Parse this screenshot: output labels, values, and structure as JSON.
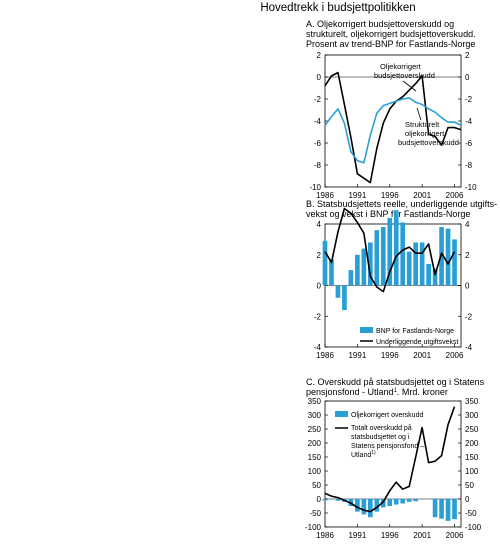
{
  "figure": {
    "title": "Hovedtrekk i budsjettpolitikken"
  },
  "chart_data": [
    {
      "panel": "A",
      "type": "line",
      "title": "A. Oljekorrigert budsjettoverskudd og strukturelt, oljekorrigert budsjettoverskudd. Prosent av trend-BNP for Fastlands-Norge",
      "title_lines": [
        "A. Oljekorrigert budsjettoverskudd og",
        "strukturelt, oljekorrigert budsjettoverskudd.",
        "Prosent av trend-BNP for Fastlands-Norge"
      ],
      "x": [
        1986,
        1987,
        1988,
        1989,
        1990,
        1991,
        1992,
        1993,
        1994,
        1995,
        1996,
        1997,
        1998,
        1999,
        2000,
        2001,
        2002,
        2003,
        2004,
        2005,
        2006,
        2007
      ],
      "x_ticks": [
        1986,
        1991,
        1996,
        2001,
        2006
      ],
      "ylim": [
        -10,
        2
      ],
      "y_ticks": [
        -10,
        -8,
        -6,
        -4,
        -2,
        0,
        2
      ],
      "grid": false,
      "series": [
        {
          "name": "Oljekorrigert budsjettoverskudd",
          "color": "#000000",
          "values": [
            -0.8,
            0.1,
            0.4,
            -2.5,
            -5.5,
            -8.8,
            -9.2,
            -9.6,
            -6.5,
            -4.2,
            -2.9,
            -2.2,
            -1.8,
            -1.2,
            -0.6,
            0.1,
            -5.2,
            -5.4,
            -6.2,
            -4.6,
            -4.6,
            -4.8
          ]
        },
        {
          "name": "Strukturelt oljekorrigert budsjettoverskudd",
          "color": "#2a9fd6",
          "values": [
            -4.4,
            -3.6,
            -2.9,
            -4.2,
            -6.8,
            -7.6,
            -7.8,
            -5.3,
            -3.3,
            -2.6,
            -2.4,
            -2.2,
            -2.0,
            -1.9,
            -2.3,
            -2.5,
            -2.9,
            -3.2,
            -3.7,
            -4.1,
            -4.1,
            -4.4
          ]
        }
      ],
      "annotations": [
        {
          "lines": [
            "Oljekorrigert",
            "budsjettoverskudd"
          ]
        },
        {
          "lines": [
            "Strukturelt",
            "oljekorrigert",
            "budsjettoverskudd"
          ]
        }
      ]
    },
    {
      "panel": "B",
      "type": "bar+line",
      "title": "B. Statsbudsjettets reelle, underliggende utgiftsvekst og vekst i BNP for Fastlands-Norge",
      "title_lines": [
        "B. Statsbudsjettets reelle, underliggende utgifts-",
        "vekst og vekst i BNP for Fastlands-Norge"
      ],
      "x": [
        1986,
        1987,
        1988,
        1989,
        1990,
        1991,
        1992,
        1993,
        1994,
        1995,
        1996,
        1997,
        1998,
        1999,
        2000,
        2001,
        2002,
        2003,
        2004,
        2005,
        2006,
        2007
      ],
      "x_ticks": [
        1986,
        1991,
        1996,
        2001,
        2006
      ],
      "ylim": [
        -4,
        4
      ],
      "y_ticks": [
        -4,
        -2,
        0,
        2,
        4
      ],
      "grid": false,
      "legend_position": "bottom-right",
      "series": [
        {
          "name": "BNP for Fastlands-Norge",
          "kind": "bar",
          "color": "#2a9fd6",
          "values": [
            2.9,
            1.7,
            -0.8,
            -1.6,
            1.0,
            2.0,
            2.4,
            2.8,
            3.6,
            3.8,
            4.4,
            4.9,
            4.1,
            2.2,
            2.8,
            2.8,
            1.4,
            1.1,
            3.8,
            3.7,
            3.0,
            null
          ]
        },
        {
          "name": "Underliggende utgiftsvekst",
          "kind": "line",
          "color": "#000000",
          "values": [
            2.2,
            1.5,
            3.5,
            5.0,
            4.7,
            4.1,
            3.4,
            0.6,
            -0.1,
            -0.4,
            0.9,
            1.9,
            2.3,
            2.5,
            2.1,
            2.1,
            2.7,
            0.7,
            2.1,
            1.4,
            2.2,
            null
          ]
        }
      ]
    },
    {
      "panel": "C",
      "type": "bar+line",
      "title": "C. Overskudd på statsbudsjettet og i Statens pensjonsfond - Utland. Mrd. kroner",
      "title_lines": [
        "C. Overskudd på statsbudsjettet og i Statens",
        "pensjonsfond - Utland",
        "1",
        ". Mrd. kroner"
      ],
      "x": [
        1986,
        1987,
        1988,
        1989,
        1990,
        1991,
        1992,
        1993,
        1994,
        1995,
        1996,
        1997,
        1998,
        1999,
        2000,
        2001,
        2002,
        2003,
        2004,
        2005,
        2006,
        2007
      ],
      "x_ticks": [
        1986,
        1991,
        1996,
        2001,
        2006
      ],
      "ylim": [
        -100,
        350
      ],
      "y_ticks": [
        -100,
        -50,
        0,
        50,
        100,
        150,
        200,
        250,
        300,
        350
      ],
      "grid": false,
      "legend_position": "top-left",
      "series": [
        {
          "name": "Oljekorrigert overskudd",
          "kind": "bar",
          "color": "#2a9fd6",
          "values": [
            -5,
            -2,
            -6,
            -10,
            -25,
            -45,
            -55,
            -65,
            -45,
            -30,
            -25,
            -20,
            -16,
            -10,
            -8,
            null,
            null,
            -65,
            -70,
            -78,
            -72,
            null
          ]
        },
        {
          "name": "Totalt overskudd på statsbudsjettet og i Statens pensjonsfond – Utland",
          "kind": "line",
          "color": "#000000",
          "values": [
            20,
            10,
            5,
            -5,
            -15,
            -30,
            -40,
            -45,
            -30,
            -10,
            30,
            60,
            35,
            45,
            150,
            255,
            130,
            135,
            155,
            265,
            330,
            null
          ]
        }
      ],
      "legend_lines": [
        "Oljekorrigert overskudd",
        "Totalt overskudd på",
        "statsbudsjettet og i",
        "Statens pensjonsfond –",
        "Utland",
        "1)"
      ]
    }
  ]
}
